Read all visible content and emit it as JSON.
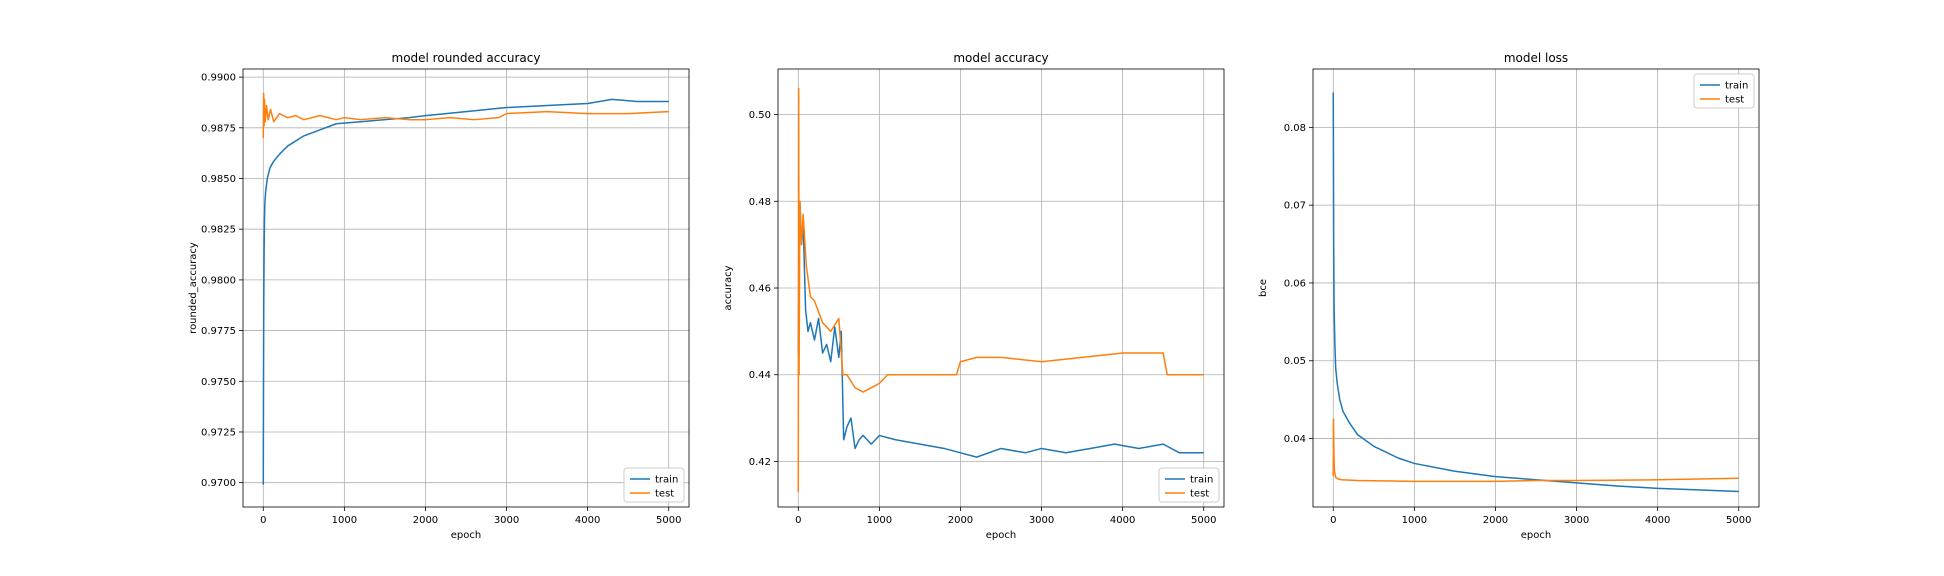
{
  "chart_data": [
    {
      "type": "line",
      "title": "model rounded accuracy",
      "xlabel": "epoch",
      "ylabel": "rounded_accuracy",
      "xlim": [
        -250,
        5250
      ],
      "ylim": [
        0.9688,
        0.9904
      ],
      "xticks": [
        0,
        1000,
        2000,
        3000,
        4000,
        5000
      ],
      "xtick_labels": [
        "0",
        "1000",
        "2000",
        "3000",
        "4000",
        "5000"
      ],
      "yticks": [
        0.97,
        0.9725,
        0.975,
        0.9775,
        0.98,
        0.9825,
        0.985,
        0.9875,
        0.99
      ],
      "ytick_labels": [
        "0.9700",
        "0.9725",
        "0.9750",
        "0.9775",
        "0.9800",
        "0.9825",
        "0.9850",
        "0.9875",
        "0.9900"
      ],
      "grid": true,
      "legend": "lower-right",
      "series": [
        {
          "name": "train",
          "color": "#1f77b4",
          "points": [
            [
              0,
              0.9699
            ],
            [
              3,
              0.9748
            ],
            [
              6,
              0.9788
            ],
            [
              10,
              0.9812
            ],
            [
              15,
              0.983
            ],
            [
              20,
              0.9838
            ],
            [
              30,
              0.9844
            ],
            [
              50,
              0.985
            ],
            [
              80,
              0.9855
            ],
            [
              120,
              0.9858
            ],
            [
              200,
              0.9862
            ],
            [
              300,
              0.9866
            ],
            [
              500,
              0.9871
            ],
            [
              700,
              0.9874
            ],
            [
              900,
              0.9877
            ],
            [
              1200,
              0.9878
            ],
            [
              1500,
              0.9879
            ],
            [
              1800,
              0.988
            ],
            [
              2000,
              0.9881
            ],
            [
              2500,
              0.9883
            ],
            [
              3000,
              0.9885
            ],
            [
              3500,
              0.9886
            ],
            [
              4000,
              0.9887
            ],
            [
              4300,
              0.9889
            ],
            [
              4600,
              0.9888
            ],
            [
              5000,
              0.9888
            ]
          ]
        },
        {
          "name": "test",
          "color": "#ff7f0e",
          "points": [
            [
              0,
              0.987
            ],
            [
              5,
              0.9892
            ],
            [
              10,
              0.9876
            ],
            [
              15,
              0.9889
            ],
            [
              25,
              0.9878
            ],
            [
              40,
              0.9886
            ],
            [
              60,
              0.9879
            ],
            [
              90,
              0.9884
            ],
            [
              130,
              0.9878
            ],
            [
              200,
              0.9882
            ],
            [
              300,
              0.988
            ],
            [
              400,
              0.9881
            ],
            [
              500,
              0.9879
            ],
            [
              700,
              0.9881
            ],
            [
              900,
              0.9879
            ],
            [
              1000,
              0.988
            ],
            [
              1200,
              0.9879
            ],
            [
              1500,
              0.988
            ],
            [
              1800,
              0.9879
            ],
            [
              2000,
              0.9879
            ],
            [
              2300,
              0.988
            ],
            [
              2600,
              0.9879
            ],
            [
              2900,
              0.988
            ],
            [
              3000,
              0.9882
            ],
            [
              3500,
              0.9883
            ],
            [
              4000,
              0.9882
            ],
            [
              4500,
              0.9882
            ],
            [
              5000,
              0.9883
            ]
          ]
        }
      ]
    },
    {
      "type": "line",
      "title": "model accuracy",
      "xlabel": "epoch",
      "ylabel": "accuracy",
      "xlim": [
        -250,
        5250
      ],
      "ylim": [
        0.4095,
        0.5105
      ],
      "xticks": [
        0,
        1000,
        2000,
        3000,
        4000,
        5000
      ],
      "xtick_labels": [
        "0",
        "1000",
        "2000",
        "3000",
        "4000",
        "5000"
      ],
      "yticks": [
        0.42,
        0.44,
        0.46,
        0.48,
        0.5
      ],
      "ytick_labels": [
        "0.42",
        "0.44",
        "0.46",
        "0.48",
        "0.50"
      ],
      "grid": true,
      "legend": "lower-right",
      "series": [
        {
          "name": "train",
          "color": "#1f77b4",
          "points": [
            [
              0,
              0.445
            ],
            [
              10,
              0.47
            ],
            [
              20,
              0.48
            ],
            [
              40,
              0.47
            ],
            [
              60,
              0.475
            ],
            [
              90,
              0.455
            ],
            [
              120,
              0.45
            ],
            [
              150,
              0.452
            ],
            [
              200,
              0.448
            ],
            [
              250,
              0.453
            ],
            [
              300,
              0.445
            ],
            [
              350,
              0.447
            ],
            [
              400,
              0.443
            ],
            [
              450,
              0.451
            ],
            [
              500,
              0.444
            ],
            [
              530,
              0.45
            ],
            [
              560,
              0.425
            ],
            [
              600,
              0.428
            ],
            [
              650,
              0.43
            ],
            [
              700,
              0.423
            ],
            [
              750,
              0.425
            ],
            [
              800,
              0.426
            ],
            [
              900,
              0.424
            ],
            [
              1000,
              0.426
            ],
            [
              1200,
              0.425
            ],
            [
              1500,
              0.424
            ],
            [
              1800,
              0.423
            ],
            [
              2000,
              0.422
            ],
            [
              2200,
              0.421
            ],
            [
              2500,
              0.423
            ],
            [
              2800,
              0.422
            ],
            [
              3000,
              0.423
            ],
            [
              3300,
              0.422
            ],
            [
              3600,
              0.423
            ],
            [
              3900,
              0.424
            ],
            [
              4200,
              0.423
            ],
            [
              4500,
              0.424
            ],
            [
              4700,
              0.422
            ],
            [
              5000,
              0.422
            ]
          ]
        },
        {
          "name": "test",
          "color": "#ff7f0e",
          "points": [
            [
              0,
              0.413
            ],
            [
              5,
              0.506
            ],
            [
              10,
              0.44
            ],
            [
              20,
              0.48
            ],
            [
              40,
              0.47
            ],
            [
              60,
              0.477
            ],
            [
              100,
              0.465
            ],
            [
              150,
              0.458
            ],
            [
              200,
              0.457
            ],
            [
              300,
              0.452
            ],
            [
              400,
              0.45
            ],
            [
              500,
              0.453
            ],
            [
              550,
              0.44
            ],
            [
              600,
              0.44
            ],
            [
              700,
              0.437
            ],
            [
              800,
              0.436
            ],
            [
              1000,
              0.438
            ],
            [
              1100,
              0.44
            ],
            [
              1500,
              0.44
            ],
            [
              1950,
              0.44
            ],
            [
              2000,
              0.443
            ],
            [
              2200,
              0.444
            ],
            [
              2500,
              0.444
            ],
            [
              3000,
              0.443
            ],
            [
              3500,
              0.444
            ],
            [
              4000,
              0.445
            ],
            [
              4200,
              0.445
            ],
            [
              4500,
              0.445
            ],
            [
              4550,
              0.44
            ],
            [
              4600,
              0.44
            ],
            [
              5000,
              0.44
            ]
          ]
        }
      ]
    },
    {
      "type": "line",
      "title": "model loss",
      "xlabel": "epoch",
      "ylabel": "bce",
      "xlim": [
        -250,
        5250
      ],
      "ylim": [
        0.0312,
        0.0875
      ],
      "xticks": [
        0,
        1000,
        2000,
        3000,
        4000,
        5000
      ],
      "xtick_labels": [
        "0",
        "1000",
        "2000",
        "3000",
        "4000",
        "5000"
      ],
      "yticks": [
        0.04,
        0.05,
        0.06,
        0.07,
        0.08
      ],
      "ytick_labels": [
        "0.04",
        "0.05",
        "0.06",
        "0.07",
        "0.08"
      ],
      "grid": true,
      "legend": "upper-right",
      "series": [
        {
          "name": "train",
          "color": "#1f77b4",
          "points": [
            [
              0,
              0.0845
            ],
            [
              5,
              0.065
            ],
            [
              10,
              0.057
            ],
            [
              20,
              0.052
            ],
            [
              30,
              0.049
            ],
            [
              50,
              0.047
            ],
            [
              80,
              0.045
            ],
            [
              120,
              0.0435
            ],
            [
              200,
              0.042
            ],
            [
              300,
              0.0405
            ],
            [
              500,
              0.039
            ],
            [
              800,
              0.0375
            ],
            [
              1000,
              0.0368
            ],
            [
              1500,
              0.0358
            ],
            [
              2000,
              0.0351
            ],
            [
              2500,
              0.0347
            ],
            [
              3000,
              0.0343
            ],
            [
              3500,
              0.0339
            ],
            [
              4000,
              0.0336
            ],
            [
              4500,
              0.0334
            ],
            [
              5000,
              0.0332
            ]
          ]
        },
        {
          "name": "test",
          "color": "#ff7f0e",
          "points": [
            [
              0,
              0.0352
            ],
            [
              3,
              0.0425
            ],
            [
              8,
              0.038
            ],
            [
              15,
              0.0358
            ],
            [
              30,
              0.035
            ],
            [
              60,
              0.0348
            ],
            [
              100,
              0.0347
            ],
            [
              300,
              0.0346
            ],
            [
              1000,
              0.0345
            ],
            [
              2000,
              0.0345
            ],
            [
              2500,
              0.0346
            ],
            [
              3000,
              0.0346
            ],
            [
              4000,
              0.0347
            ],
            [
              5000,
              0.0349
            ]
          ]
        }
      ]
    }
  ]
}
